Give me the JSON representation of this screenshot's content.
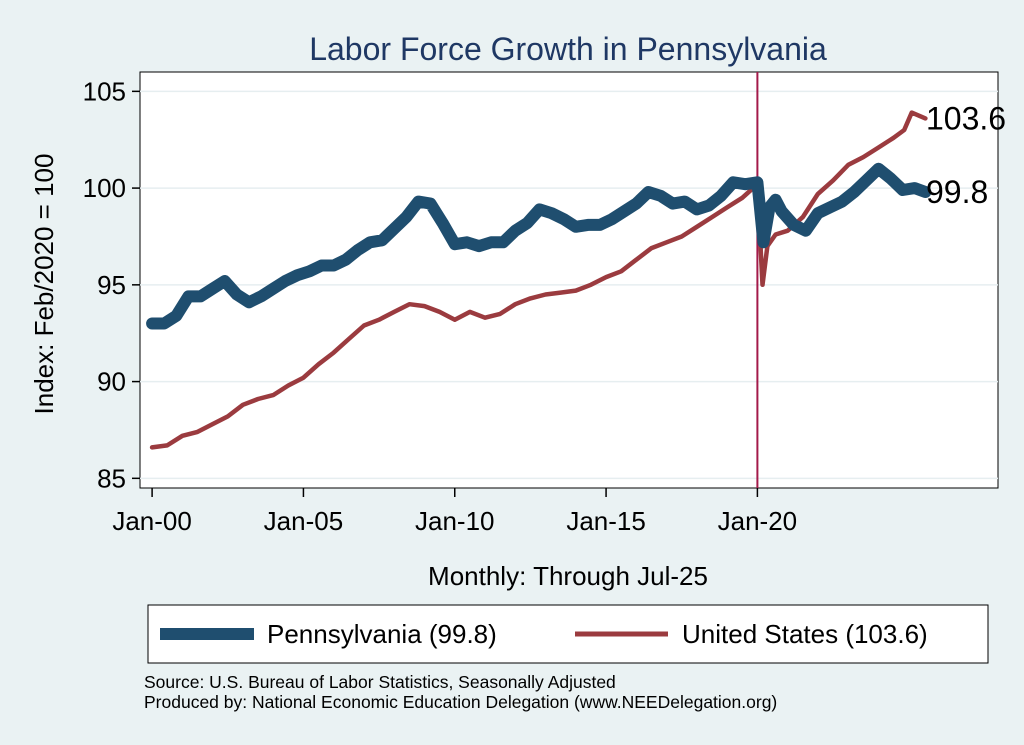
{
  "chart_data": {
    "type": "line",
    "title": "Labor Force Growth in Pennsylvania",
    "ylabel": "Index: Feb/2020 = 100",
    "xlabel": "Monthly: Through Jul-25",
    "ylim": [
      84.5,
      106
    ],
    "xlim": [
      1999.6,
      2027.95
    ],
    "yticks": [
      85,
      90,
      95,
      100,
      105
    ],
    "xticks": [
      {
        "label": "Jan-00",
        "value": 2000
      },
      {
        "label": "Jan-05",
        "value": 2005
      },
      {
        "label": "Jan-10",
        "value": 2010
      },
      {
        "label": "Jan-15",
        "value": 2015
      },
      {
        "label": "Jan-20",
        "value": 2020
      }
    ],
    "reference_line": {
      "x": 2020.0,
      "color": "#a31a4a"
    },
    "series": [
      {
        "name": "Pennsylvania",
        "legend_label": "Pennsylvania (99.8)",
        "end_label": "99.8",
        "color": "#1f4e6f",
        "x": [
          2000.0,
          2000.4,
          2000.8,
          2001.2,
          2001.6,
          2002.0,
          2002.4,
          2002.8,
          2003.2,
          2003.6,
          2004.0,
          2004.4,
          2004.8,
          2005.2,
          2005.6,
          2006.0,
          2006.4,
          2006.8,
          2007.2,
          2007.6,
          2008.0,
          2008.4,
          2008.8,
          2009.2,
          2009.6,
          2010.0,
          2010.4,
          2010.8,
          2011.2,
          2011.6,
          2012.0,
          2012.4,
          2012.8,
          2013.2,
          2013.6,
          2014.0,
          2014.4,
          2014.8,
          2015.2,
          2015.6,
          2016.0,
          2016.4,
          2016.8,
          2017.2,
          2017.6,
          2018.0,
          2018.4,
          2018.8,
          2019.2,
          2019.6,
          2020.0,
          2020.2,
          2020.4,
          2020.6,
          2020.8,
          2021.2,
          2021.6,
          2022.0,
          2022.4,
          2022.8,
          2023.2,
          2023.6,
          2024.0,
          2024.4,
          2024.8,
          2025.2,
          2025.55
        ],
        "values": [
          93.0,
          93.0,
          93.4,
          94.4,
          94.4,
          94.8,
          95.2,
          94.5,
          94.1,
          94.4,
          94.8,
          95.2,
          95.5,
          95.7,
          96.0,
          96.0,
          96.3,
          96.8,
          97.2,
          97.3,
          97.9,
          98.5,
          99.3,
          99.2,
          98.2,
          97.1,
          97.2,
          97.0,
          97.2,
          97.2,
          97.8,
          98.2,
          98.9,
          98.7,
          98.4,
          98.0,
          98.1,
          98.1,
          98.4,
          98.8,
          99.2,
          99.8,
          99.6,
          99.2,
          99.3,
          98.9,
          99.1,
          99.6,
          100.3,
          100.2,
          100.3,
          97.2,
          99.0,
          99.4,
          98.8,
          98.1,
          97.8,
          98.7,
          99.0,
          99.3,
          99.8,
          100.4,
          101.0,
          100.5,
          99.9,
          100.0,
          99.8
        ]
      },
      {
        "name": "United States",
        "legend_label": "United States (103.6)",
        "end_label": "103.6",
        "color": "#9b3b3f",
        "x": [
          2000.0,
          2000.5,
          2001.0,
          2001.5,
          2002.0,
          2002.5,
          2003.0,
          2003.5,
          2004.0,
          2004.5,
          2005.0,
          2005.5,
          2006.0,
          2006.5,
          2007.0,
          2007.5,
          2008.0,
          2008.5,
          2009.0,
          2009.5,
          2010.0,
          2010.5,
          2011.0,
          2011.5,
          2012.0,
          2012.5,
          2013.0,
          2013.5,
          2014.0,
          2014.5,
          2015.0,
          2015.5,
          2016.0,
          2016.5,
          2017.0,
          2017.5,
          2018.0,
          2018.5,
          2019.0,
          2019.5,
          2020.0,
          2020.17,
          2020.33,
          2020.6,
          2021.0,
          2021.5,
          2022.0,
          2022.5,
          2023.0,
          2023.5,
          2024.0,
          2024.5,
          2024.85,
          2025.1,
          2025.55
        ],
        "values": [
          86.6,
          86.7,
          87.2,
          87.4,
          87.8,
          88.2,
          88.8,
          89.1,
          89.3,
          89.8,
          90.2,
          90.9,
          91.5,
          92.2,
          92.9,
          93.2,
          93.6,
          94.0,
          93.9,
          93.6,
          93.2,
          93.6,
          93.3,
          93.5,
          94.0,
          94.3,
          94.5,
          94.6,
          94.7,
          95.0,
          95.4,
          95.7,
          96.3,
          96.9,
          97.2,
          97.5,
          98.0,
          98.5,
          99.0,
          99.5,
          100.2,
          95.0,
          97.0,
          97.6,
          97.8,
          98.5,
          99.7,
          100.4,
          101.2,
          101.6,
          102.1,
          102.6,
          103.0,
          103.9,
          103.6
        ]
      }
    ],
    "source_text": "Source: U.S. Bureau of Labor Statistics, Seasonally Adjusted",
    "produced_text": "Produced by: National Economic Education Delegation (www.NEEDelegation.org)"
  }
}
